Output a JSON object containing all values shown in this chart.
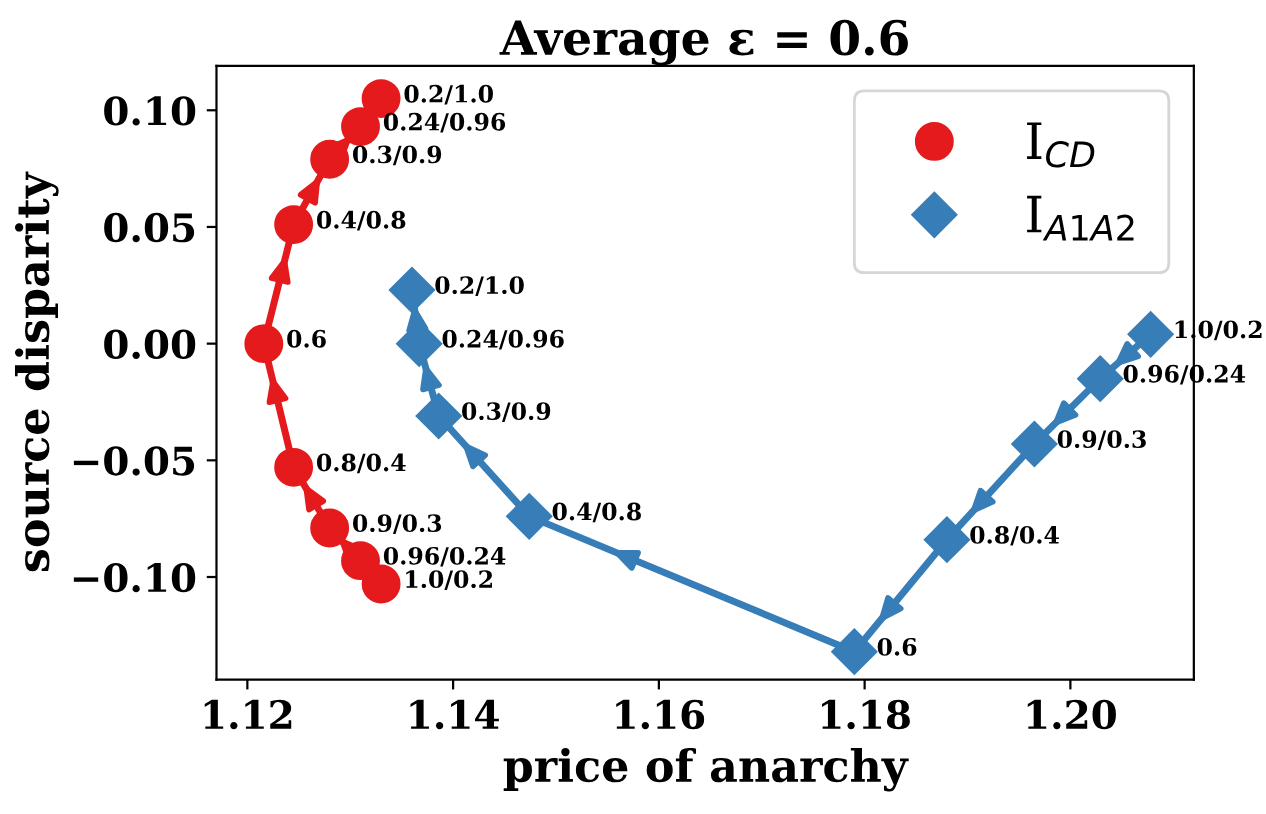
{
  "chart_data": {
    "type": "line",
    "title": "Average ε = 0.6",
    "xlabel": "price of anarchy",
    "ylabel": "source disparity",
    "series": [
      {
        "name": "I$_{CD}$",
        "color": "#e41a1c",
        "marker": "circle",
        "x": [
          1.133,
          1.131,
          1.128,
          1.1245,
          1.1216,
          1.1245,
          1.128,
          1.131,
          1.133
        ],
        "values": [
          -0.103,
          -0.093,
          -0.079,
          -0.053,
          0.0,
          0.051,
          0.079,
          0.093,
          0.105
        ]
      },
      {
        "name": "I$_{A1A2}$",
        "color": "#377eb8",
        "marker": "diamond",
        "x": [
          1.2078,
          1.2029,
          1.1965,
          1.188,
          1.179,
          1.1474,
          1.1386,
          1.1367,
          1.136
        ],
        "values": [
          0.004,
          -0.015,
          -0.043,
          -0.084,
          -0.132,
          -0.074,
          -0.031,
          0.0,
          0.023
        ]
      }
    ],
    "annotations": [
      {
        "text": "1.0/0.2",
        "x": 1.133,
        "y": -0.103
      },
      {
        "text": "0.96/0.24",
        "x": 1.131,
        "y": -0.093
      },
      {
        "text": "0.9/0.3",
        "x": 1.128,
        "y": -0.079
      },
      {
        "text": "0.8/0.4",
        "x": 1.1245,
        "y": -0.053
      },
      {
        "text": "0.6",
        "x": 1.1216,
        "y": 0.0
      },
      {
        "text": "0.4/0.8",
        "x": 1.1245,
        "y": 0.051
      },
      {
        "text": "0.3/0.9",
        "x": 1.128,
        "y": 0.079
      },
      {
        "text": "0.24/0.96",
        "x": 1.131,
        "y": 0.093
      },
      {
        "text": "0.2/1.0",
        "x": 1.133,
        "y": 0.105
      },
      {
        "text": "1.0/0.2",
        "x": 1.2078,
        "y": 0.004
      },
      {
        "text": "0.96/0.24",
        "x": 1.2029,
        "y": -0.015
      },
      {
        "text": "0.9/0.3",
        "x": 1.1965,
        "y": -0.043
      },
      {
        "text": "0.8/0.4",
        "x": 1.188,
        "y": -0.084
      },
      {
        "text": "0.6",
        "x": 1.179,
        "y": -0.132
      },
      {
        "text": "0.4/0.8",
        "x": 1.1474,
        "y": -0.074
      },
      {
        "text": "0.3/0.9",
        "x": 1.1386,
        "y": -0.031
      },
      {
        "text": "0.24/0.96",
        "x": 1.1367,
        "y": 0.0
      },
      {
        "text": "0.2/1.0",
        "x": 1.136,
        "y": 0.023
      }
    ],
    "xlim": [
      1.117,
      1.212
    ],
    "ylim": [
      -0.144,
      0.119
    ],
    "xticks": [
      {
        "value": 1.12,
        "label": "1.12"
      },
      {
        "value": 1.14,
        "label": "1.14"
      },
      {
        "value": 1.16,
        "label": "1.16"
      },
      {
        "value": 1.18,
        "label": "1.18"
      },
      {
        "value": 1.2,
        "label": "1.20"
      }
    ],
    "yticks": [
      {
        "value": -0.1,
        "label": "−0.10"
      },
      {
        "value": -0.05,
        "label": "−0.05"
      },
      {
        "value": 0.0,
        "label": "0.00"
      },
      {
        "value": 0.05,
        "label": "0.05"
      },
      {
        "value": 0.1,
        "label": "0.10"
      }
    ],
    "legend": "top right",
    "grid": false
  }
}
